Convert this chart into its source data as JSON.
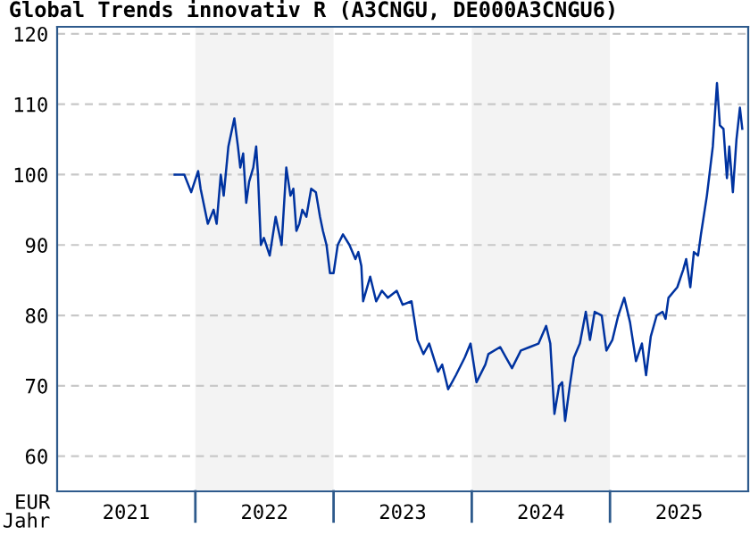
{
  "chart_data": {
    "type": "line",
    "title": "Global Trends innovativ R (A3CNGU, DE000A3CNGU6)",
    "xlabel": "Jahr",
    "ylabel": "EUR",
    "x": [
      2021.85,
      2021.92,
      2021.97,
      2022.02,
      2022.038,
      2022.09,
      2022.132,
      2022.154,
      2022.184,
      2022.205,
      2022.239,
      2022.282,
      2022.308,
      2022.325,
      2022.346,
      2022.368,
      2022.389,
      2022.419,
      2022.44,
      2022.453,
      2022.474,
      2022.496,
      2022.538,
      2022.581,
      2022.624,
      2022.658,
      2022.688,
      2022.709,
      2022.731,
      2022.752,
      2022.774,
      2022.803,
      2022.838,
      2022.872,
      2022.902,
      2022.923,
      2022.949,
      2022.974,
      2023.0,
      2023.03,
      2023.068,
      2023.115,
      2023.158,
      2023.179,
      2023.201,
      2023.214,
      2023.265,
      2023.308,
      2023.35,
      2023.393,
      2023.457,
      2023.5,
      2023.564,
      2023.607,
      2023.65,
      2023.692,
      2023.756,
      2023.786,
      2023.829,
      2023.885,
      2023.949,
      2023.991,
      2024.034,
      2024.098,
      2024.12,
      2024.205,
      2024.248,
      2024.291,
      2024.355,
      2024.419,
      2024.483,
      2024.538,
      2024.568,
      2024.598,
      2024.632,
      2024.654,
      2024.675,
      2024.709,
      2024.739,
      2024.782,
      2024.825,
      2024.855,
      2024.889,
      2024.94,
      2024.974,
      2025.017,
      2025.06,
      2025.103,
      2025.145,
      2025.188,
      2025.231,
      2025.261,
      2025.295,
      2025.338,
      2025.38,
      2025.402,
      2025.423,
      2025.487,
      2025.53,
      2025.551,
      2025.581,
      2025.607,
      2025.637,
      2025.658,
      2025.701,
      2025.744,
      2025.774,
      2025.795,
      2025.821,
      2025.846,
      2025.863,
      2025.889,
      2025.915,
      2025.94,
      2025.957
    ],
    "series": [
      {
        "color": "#0033a0",
        "values": [
          100,
          100,
          97.5,
          100.5,
          98,
          93,
          95,
          93,
          100,
          97,
          104,
          108,
          104,
          101,
          103,
          96,
          99,
          101,
          104,
          100,
          90,
          91,
          88.5,
          94,
          90,
          101,
          97,
          98,
          92,
          93,
          95,
          94,
          98,
          97.5,
          94,
          92,
          90,
          86,
          86,
          90,
          91.5,
          90,
          88,
          89,
          87,
          82,
          85.5,
          82,
          83.5,
          82.5,
          83.5,
          81.5,
          82,
          76.5,
          74.5,
          76,
          72,
          73,
          69.5,
          71.5,
          74,
          76,
          70.5,
          73,
          74.5,
          75.5,
          74,
          72.5,
          75,
          75.5,
          76,
          78.5,
          76,
          66,
          70,
          70.5,
          65,
          70,
          74,
          76,
          80.5,
          76.5,
          80.5,
          80,
          75,
          76.5,
          80,
          82.5,
          79,
          73.5,
          76,
          71.5,
          77,
          80,
          80.5,
          79.5,
          82.5,
          84,
          86.5,
          88,
          84,
          89,
          88.5,
          91.5,
          97,
          104,
          113,
          107,
          106.5,
          99.5,
          104,
          97.5,
          105,
          109.5,
          106.5
        ]
      }
    ],
    "xlim": [
      2021,
      2026
    ],
    "ylim": [
      55,
      121
    ],
    "xticks": [
      {
        "value": 2021.5,
        "label": "2021"
      },
      {
        "value": 2022.5,
        "label": "2022"
      },
      {
        "value": 2023.5,
        "label": "2023"
      },
      {
        "value": 2024.5,
        "label": "2024"
      },
      {
        "value": 2025.5,
        "label": "2025"
      }
    ],
    "yticks": [
      60,
      70,
      80,
      90,
      100,
      110,
      120
    ],
    "bands": [
      {
        "axis": "x",
        "from": 2022,
        "to": 2023,
        "color": "#f3f3f3"
      },
      {
        "axis": "x",
        "from": 2024,
        "to": 2025,
        "color": "#f3f3f3"
      }
    ],
    "grid": "y",
    "legend": false,
    "marker": "none",
    "line_style": "solid"
  }
}
